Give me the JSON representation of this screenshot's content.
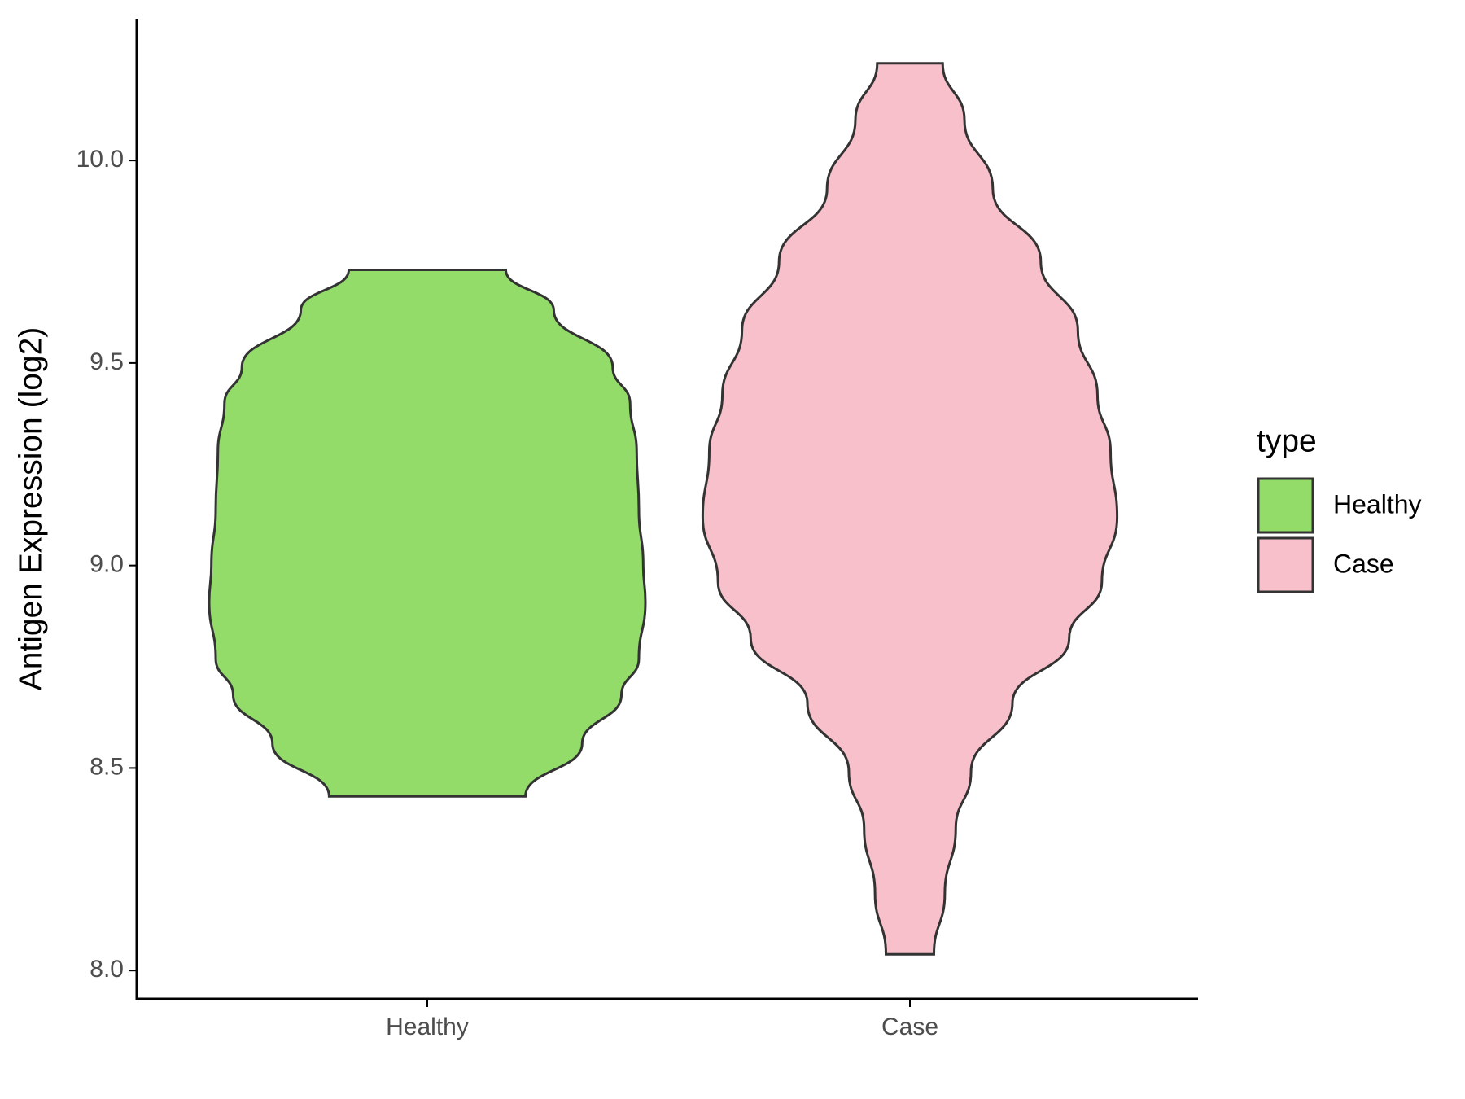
{
  "chart_data": {
    "type": "violin",
    "y_label": "Antigen Expression (log2)",
    "categories": [
      "Healthy",
      "Case"
    ],
    "legend_title": "type",
    "ylim": [
      7.93,
      10.35
    ],
    "yticks": [
      {
        "value": 8,
        "label": "8.0"
      },
      {
        "value": 8.5,
        "label": "8.5"
      },
      {
        "value": 9,
        "label": "9.0"
      },
      {
        "value": 9.5,
        "label": "9.5"
      },
      {
        "value": 10,
        "label": "10.0"
      }
    ],
    "series": [
      {
        "name": "Healthy",
        "color": "#93dc6a",
        "y": [
          9.73,
          9.63,
          9.49,
          9.4,
          9.28,
          9.14,
          9.0,
          8.91,
          8.77,
          8.68,
          8.56,
          8.43
        ],
        "density": [
          0.36,
          0.58,
          0.85,
          0.93,
          0.96,
          0.97,
          0.99,
          1.0,
          0.97,
          0.89,
          0.71,
          0.45
        ]
      },
      {
        "name": "Case",
        "color": "#f7c0cb",
        "y": [
          10.24,
          10.1,
          9.93,
          9.75,
          9.58,
          9.42,
          9.28,
          9.12,
          8.96,
          8.82,
          8.66,
          8.49,
          8.35,
          8.19,
          8.04
        ],
        "density": [
          0.15,
          0.25,
          0.38,
          0.6,
          0.77,
          0.86,
          0.92,
          0.95,
          0.88,
          0.73,
          0.47,
          0.28,
          0.21,
          0.16,
          0.11
        ]
      }
    ]
  }
}
